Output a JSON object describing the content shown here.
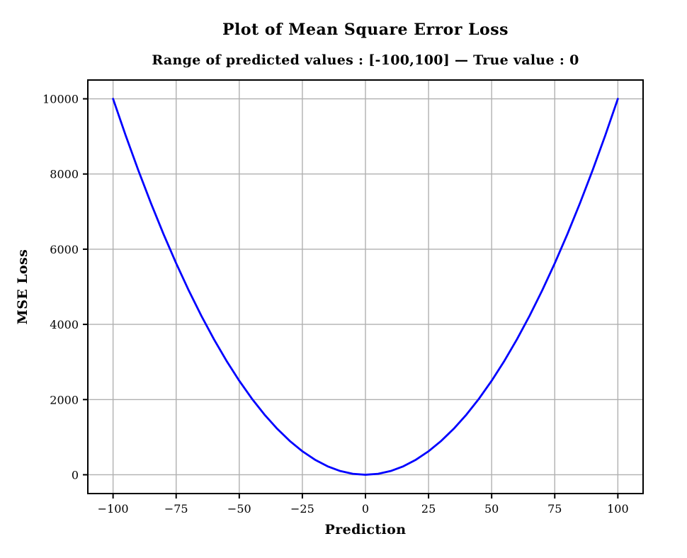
{
  "chart_data": {
    "type": "line",
    "title": "Plot of Mean Square Error Loss",
    "subtitle": "Range of predicted values : [-100,100] — True value : 0",
    "xlabel": "Prediction",
    "ylabel": "MSE Loss",
    "xlim": [
      -110,
      110
    ],
    "ylim": [
      -500,
      10500
    ],
    "x_ticks": [
      -100,
      -75,
      -50,
      -25,
      0,
      25,
      50,
      75,
      100
    ],
    "y_ticks": [
      0,
      2000,
      4000,
      6000,
      8000,
      10000
    ],
    "grid": true,
    "legend_position": "none",
    "series": [
      {
        "name": "mse-loss-curve",
        "color": "#0000ff",
        "x": [
          -100,
          -95,
          -90,
          -85,
          -80,
          -75,
          -70,
          -65,
          -60,
          -55,
          -50,
          -45,
          -40,
          -35,
          -30,
          -25,
          -20,
          -15,
          -10,
          -5,
          0,
          5,
          10,
          15,
          20,
          25,
          30,
          35,
          40,
          45,
          50,
          55,
          60,
          65,
          70,
          75,
          80,
          85,
          90,
          95,
          100
        ],
        "y": [
          10000,
          9025,
          8100,
          7225,
          6400,
          5625,
          4900,
          4225,
          3600,
          3025,
          2500,
          2025,
          1600,
          1225,
          900,
          625,
          400,
          225,
          100,
          25,
          0,
          25,
          100,
          225,
          400,
          625,
          900,
          1225,
          1600,
          2025,
          2500,
          3025,
          3600,
          4225,
          4900,
          5625,
          6400,
          7225,
          8100,
          9025,
          10000
        ]
      }
    ]
  },
  "style": {
    "line_color": "#0000ff",
    "grid_color": "#b0b0b0",
    "spine_color": "#000000",
    "tick_color": "#000000",
    "text_color": "#000000",
    "background": "#ffffff"
  }
}
